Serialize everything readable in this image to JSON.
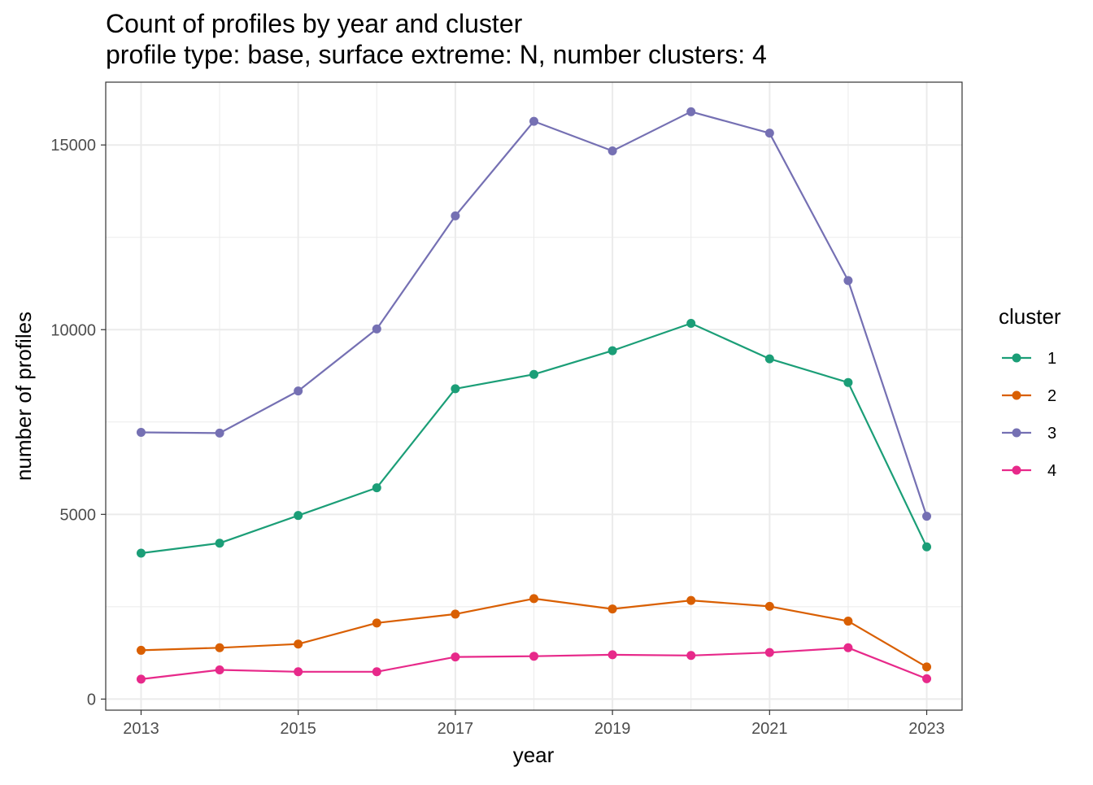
{
  "chart_data": {
    "type": "line",
    "title": "Count of profiles by year and cluster",
    "subtitle": "profile type: base, surface extreme: N, number clusters: 4",
    "xlabel": "year",
    "ylabel": "number of profiles",
    "x": [
      2013,
      2014,
      2015,
      2016,
      2017,
      2018,
      2019,
      2020,
      2021,
      2022,
      2023
    ],
    "x_ticks": [
      "2013",
      "2015",
      "2017",
      "2019",
      "2021",
      "2023"
    ],
    "y_ticks": [
      "0",
      "5000",
      "10000",
      "15000"
    ],
    "xlim": [
      2012.55,
      2023.45
    ],
    "ylim": [
      -300,
      16700
    ],
    "grid": true,
    "legend": {
      "title": "cluster",
      "position": "right"
    },
    "series": [
      {
        "name": "1",
        "color": "#1b9e77",
        "values": [
          3950,
          4220,
          4970,
          5720,
          8400,
          8790,
          9430,
          10170,
          9210,
          8570,
          4120
        ]
      },
      {
        "name": "2",
        "color": "#d95f02",
        "values": [
          1320,
          1390,
          1490,
          2060,
          2300,
          2720,
          2440,
          2670,
          2510,
          2110,
          870
        ]
      },
      {
        "name": "3",
        "color": "#7570b3",
        "values": [
          7220,
          7200,
          8340,
          10020,
          13080,
          15640,
          14840,
          15900,
          15320,
          11330,
          4950
        ]
      },
      {
        "name": "4",
        "color": "#e7298a",
        "values": [
          540,
          790,
          740,
          740,
          1140,
          1160,
          1200,
          1180,
          1260,
          1390,
          550
        ]
      }
    ]
  }
}
